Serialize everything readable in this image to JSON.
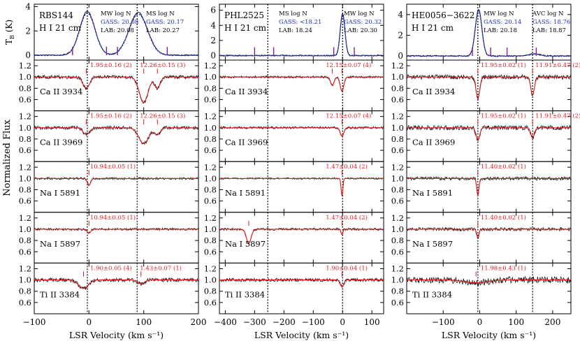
{
  "figure": {
    "ylabel_main": "Normalized Flux",
    "xlabel": "LSR Velocity (km s⁻¹)",
    "hi_ylabel": "T",
    "hi_ylabel_sub": "B",
    "hi_ylabel_unit": " (K)"
  },
  "colors": {
    "spectrum": "#000000",
    "fit": "#e31a1c",
    "hi_model": "#1f2fbf",
    "marker_hi": "#7a1fa2",
    "label_blue": "#1f2fbf",
    "label_red": "#e31a1c"
  },
  "chart_data": [
    {
      "type": "line",
      "sightline": "RBS144",
      "hi_label": "H I 21 cm",
      "xlim": [
        -100,
        200
      ],
      "xticks": [
        -100,
        0,
        100,
        200
      ],
      "xtick_labels": [
        "−100",
        "0",
        "100",
        "200"
      ],
      "hi_ylim": [
        -0.4,
        4.2
      ],
      "hi_yticks": [
        0,
        2,
        4
      ],
      "vlines": [
        -3,
        88
      ],
      "hi_components": [
        {
          "center": -3,
          "amp": 3.6,
          "width": 14
        },
        {
          "center": 90,
          "amp": 3.5,
          "width": 17
        }
      ],
      "hi_markers": [
        -30,
        32,
        52,
        143
      ],
      "hi_notes": [
        {
          "lines": [
            "MW log N",
            "GASS: 20.08",
            "LAB: 20.08"
          ]
        },
        {
          "lines": [
            "MS log N",
            "GASS: 20.17",
            "LAB: 20.27"
          ]
        }
      ],
      "ions": [
        {
          "label": "Ca II 3934",
          "ylim": [
            0.4,
            1.3
          ],
          "yticks": [
            0.6,
            0.8,
            1.0,
            1.2
          ],
          "notes": [
            "1.95±0.16 (2)",
            "12.26±0.15 (3)"
          ],
          "noise": 0.03,
          "absorbers": [
            {
              "center": -5,
              "depth": 0.2,
              "width": 6
            },
            {
              "center": 100,
              "depth": 0.45,
              "width": 8
            },
            {
              "center": 125,
              "depth": 0.2,
              "width": 5
            }
          ]
        },
        {
          "label": "Ca II 3969",
          "ylim": [
            0.4,
            1.3
          ],
          "yticks": [
            0.6,
            0.8,
            1.0,
            1.2
          ],
          "notes": [
            "1.95±0.16 (2)",
            "12.26±0.15 (3)"
          ],
          "noise": 0.03,
          "absorbers": [
            {
              "center": -5,
              "depth": 0.12,
              "width": 6
            },
            {
              "center": 100,
              "depth": 0.28,
              "width": 9
            },
            {
              "center": 125,
              "depth": 0.12,
              "width": 5
            }
          ]
        },
        {
          "label": "Na I 5891",
          "ylim": [
            0.4,
            1.3
          ],
          "yticks": [
            0.6,
            0.8,
            1.0,
            1.2
          ],
          "notes": [
            "10.94±0.05 (1)"
          ],
          "noise": 0.02,
          "absorbers": [
            {
              "center": 0,
              "depth": 0.12,
              "width": 3
            }
          ]
        },
        {
          "label": "Na I 5897",
          "ylim": [
            0.4,
            1.3
          ],
          "yticks": [
            0.6,
            0.8,
            1.0,
            1.2
          ],
          "notes": [
            "10.94±0.05 (1)"
          ],
          "noise": 0.02,
          "absorbers": [
            {
              "center": 0,
              "depth": 0.07,
              "width": 3
            }
          ]
        },
        {
          "label": "Ti II 3384",
          "ylim": [
            0.4,
            1.3
          ],
          "yticks": [
            0.6,
            0.8,
            1.0,
            1.2
          ],
          "notes": [
            "1.90±0.05 (4)",
            "1.43±0.07 (1)"
          ],
          "noise": 0.035,
          "absorbers": [
            {
              "center": -10,
              "depth": 0.15,
              "width": 9
            },
            {
              "center": 95,
              "depth": 0.07,
              "width": 6
            }
          ]
        }
      ]
    },
    {
      "type": "line",
      "sightline": "PHL2525",
      "hi_label": "H I 21 cm",
      "xlim": [
        -420,
        140
      ],
      "xticks": [
        -400,
        -300,
        -200,
        -100,
        0,
        100
      ],
      "xtick_labels": [
        "−400",
        "−300",
        "−200",
        "−100",
        "0",
        "100"
      ],
      "hi_ylim": [
        -0.6,
        6.8
      ],
      "hi_yticks": [
        0,
        2,
        4,
        6
      ],
      "vlines": [
        -255,
        0
      ],
      "hi_components": [
        {
          "center": 0,
          "amp": 5.6,
          "width": 8
        }
      ],
      "hi_markers": [
        -300,
        -235,
        -30,
        40
      ],
      "hi_notes": [
        {
          "lines": [
            "MS log N",
            "GASS: <18.21",
            "LAB: 18.24"
          ]
        },
        {
          "lines": [
            "MW log N",
            "GASS: 20.32",
            "LAB: 20.30"
          ]
        }
      ],
      "ions": [
        {
          "label": "Ca II 3934",
          "ylim": [
            0.4,
            1.3
          ],
          "yticks": [
            0.6,
            0.8,
            1.0,
            1.2
          ],
          "notes": [
            "12.15±0.07 (4)"
          ],
          "noise": 0.02,
          "absorbers": [
            {
              "center": -35,
              "depth": 0.15,
              "width": 6
            },
            {
              "center": -2,
              "depth": 0.25,
              "width": 6
            }
          ]
        },
        {
          "label": "Ca II 3969",
          "ylim": [
            0.4,
            1.3
          ],
          "yticks": [
            0.6,
            0.8,
            1.0,
            1.2
          ],
          "notes": [
            "12.15±0.07 (4)"
          ],
          "noise": 0.02,
          "absorbers": [
            {
              "center": -2,
              "depth": 0.15,
              "width": 6
            }
          ]
        },
        {
          "label": "Na I 5891",
          "ylim": [
            0.4,
            1.3
          ],
          "yticks": [
            0.6,
            0.8,
            1.0,
            1.2
          ],
          "notes": [
            "1.47±0.04 (2)"
          ],
          "noise": 0.015,
          "absorbers": [
            {
              "center": -2,
              "depth": 0.3,
              "width": 3
            }
          ]
        },
        {
          "label": "Na I 5897",
          "ylim": [
            0.4,
            1.3
          ],
          "yticks": [
            0.6,
            0.8,
            1.0,
            1.2
          ],
          "notes": [
            "1.47±0.04 (2)"
          ],
          "noise": 0.02,
          "absorbers": [
            {
              "center": -2,
              "depth": 0.1,
              "width": 3
            },
            {
              "center": -320,
              "depth": 0.25,
              "width": 8
            }
          ]
        },
        {
          "label": "Ti II 3384",
          "ylim": [
            0.4,
            1.3
          ],
          "yticks": [
            0.6,
            0.8,
            1.0,
            1.2
          ],
          "notes": [
            "1.90±0.04 (1)"
          ],
          "noise": 0.03,
          "absorbers": [
            {
              "center": -2,
              "depth": 0.12,
              "width": 6
            }
          ]
        }
      ]
    },
    {
      "type": "line",
      "sightline": "HE0056−3622",
      "hi_label": "H I 21 cm",
      "xlim": [
        -200,
        250
      ],
      "xticks": [
        -100,
        0,
        100,
        200
      ],
      "xtick_labels": [
        "−100",
        "0",
        "100",
        "200"
      ],
      "hi_ylim": [
        -0.4,
        5.0
      ],
      "hi_yticks": [
        0,
        2,
        4
      ],
      "vlines": [
        -5,
        145
      ],
      "hi_components": [
        {
          "center": -3,
          "amp": 4.5,
          "width": 9
        },
        {
          "center": 150,
          "amp": 0.2,
          "width": 15
        }
      ],
      "hi_markers": [
        -20,
        30,
        75,
        155
      ],
      "hi_notes": [
        {
          "lines": [
            "MW log N",
            "GASS: 20.14",
            "LAB: 20.18"
          ]
        },
        {
          "lines": [
            "AVC log N",
            "GASS: 18.76",
            "LAB: 18.87"
          ]
        }
      ],
      "ions": [
        {
          "label": "Ca II 3934",
          "ylim": [
            0.4,
            1.3
          ],
          "yticks": [
            0.6,
            0.8,
            1.0,
            1.2
          ],
          "notes": [
            "11.95±0.02 (1)",
            "11.91±0.47 (2)"
          ],
          "noise": 0.04,
          "absorbers": [
            {
              "center": -5,
              "depth": 0.38,
              "width": 5
            },
            {
              "center": 145,
              "depth": 0.32,
              "width": 5
            }
          ]
        },
        {
          "label": "Ca II 3969",
          "ylim": [
            0.4,
            1.3
          ],
          "yticks": [
            0.6,
            0.8,
            1.0,
            1.2
          ],
          "notes": [
            "11.95±0.02 (1)",
            "11.91±0.47 (2)"
          ],
          "noise": 0.04,
          "absorbers": [
            {
              "center": -5,
              "depth": 0.22,
              "width": 5
            },
            {
              "center": 145,
              "depth": 0.18,
              "width": 5
            }
          ]
        },
        {
          "label": "Na I 5891",
          "ylim": [
            0.4,
            1.3
          ],
          "yticks": [
            0.6,
            0.8,
            1.0,
            1.2
          ],
          "notes": [
            "11.40±0.02 (1)"
          ],
          "noise": 0.03,
          "absorbers": [
            {
              "center": -5,
              "depth": 0.3,
              "width": 3
            }
          ]
        },
        {
          "label": "Na I 5897",
          "ylim": [
            0.4,
            1.3
          ],
          "yticks": [
            0.6,
            0.8,
            1.0,
            1.2
          ],
          "notes": [
            "11.40±0.02 (1)"
          ],
          "noise": 0.03,
          "absorbers": [
            {
              "center": -5,
              "depth": 0.15,
              "width": 3
            }
          ]
        },
        {
          "label": "Ti II 3384",
          "ylim": [
            0.4,
            1.3
          ],
          "yticks": [
            0.6,
            0.8,
            1.0,
            1.2
          ],
          "notes": [
            "11.98±0.43 (1)"
          ],
          "noise": 0.06,
          "absorbers": [
            {
              "center": -10,
              "depth": 0.05,
              "width": 30
            }
          ]
        }
      ]
    }
  ]
}
